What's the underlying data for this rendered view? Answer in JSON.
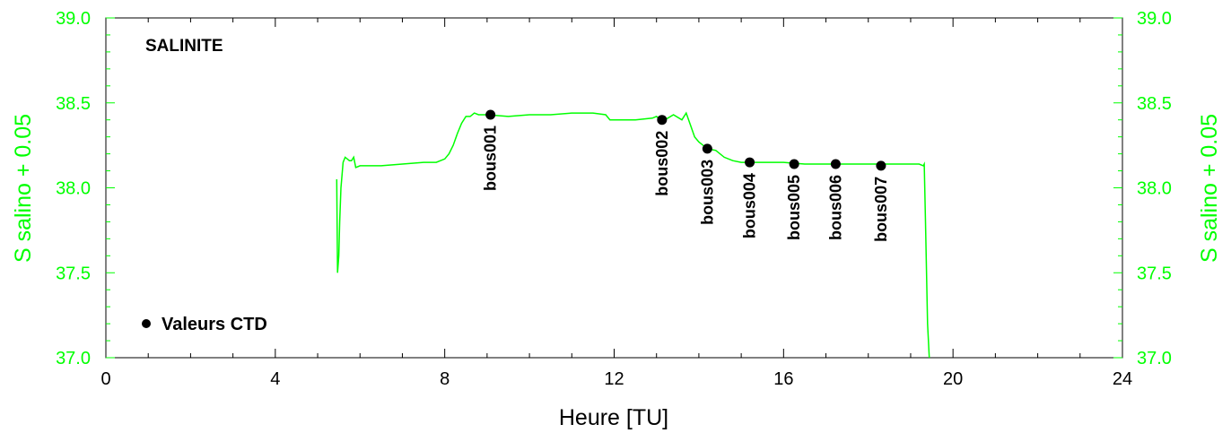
{
  "chart_data": {
    "type": "line",
    "title": "SALINITE",
    "xlabel": "Heure [TU]",
    "ylabel": "S salino + 0.05",
    "ylabel_right": "S salino + 0.05",
    "xlim": [
      0,
      24
    ],
    "ylim": [
      37.0,
      39.0
    ],
    "x_ticks": [
      "0",
      "4",
      "8",
      "12",
      "16",
      "20",
      "24"
    ],
    "y_ticks": [
      "37.0",
      "37.5",
      "38.0",
      "38.5",
      "39.0"
    ],
    "grid": false,
    "legend": {
      "label": "Valeurs CTD",
      "placement": "bottom-left"
    },
    "colors": {
      "series": "#00ff00",
      "axis_labels": "#00ff00",
      "ctd_points": "#000000"
    },
    "series": [
      {
        "x": [
          5.45,
          5.47,
          5.5,
          5.52,
          5.55,
          5.6,
          5.65,
          5.7,
          5.75,
          5.8,
          5.85,
          5.9,
          6.0,
          6.2,
          6.5,
          7.0,
          7.5,
          7.8,
          8.0,
          8.1,
          8.2,
          8.3,
          8.4,
          8.5,
          8.6,
          8.7,
          8.8,
          9.0,
          9.5,
          10.0,
          10.5,
          11.0,
          11.5,
          11.8,
          11.9,
          12.0,
          12.5,
          12.9,
          13.0,
          13.1,
          13.2,
          13.4,
          13.6,
          13.7,
          13.8,
          13.9,
          14.0,
          14.1,
          14.2,
          14.4,
          14.6,
          14.8,
          15.0,
          15.5,
          16.0,
          16.5,
          17.0,
          17.5,
          18.0,
          18.5,
          19.0,
          19.2,
          19.3,
          19.32,
          19.35,
          19.4,
          19.45
        ],
        "y": [
          38.05,
          37.5,
          37.6,
          37.8,
          38.0,
          38.15,
          38.18,
          38.17,
          38.16,
          38.16,
          38.18,
          38.12,
          38.13,
          38.13,
          38.13,
          38.14,
          38.15,
          38.15,
          38.17,
          38.2,
          38.25,
          38.32,
          38.38,
          38.42,
          38.42,
          38.44,
          38.43,
          38.43,
          38.42,
          38.43,
          38.43,
          38.44,
          38.44,
          38.43,
          38.4,
          38.4,
          38.4,
          38.41,
          38.42,
          38.4,
          38.4,
          38.43,
          38.4,
          38.44,
          38.37,
          38.3,
          38.27,
          38.25,
          38.23,
          38.22,
          38.18,
          38.16,
          38.15,
          38.15,
          38.15,
          38.14,
          38.14,
          38.14,
          38.14,
          38.14,
          38.14,
          38.14,
          38.13,
          38.14,
          37.8,
          37.2,
          36.95
        ]
      }
    ],
    "ctd_points": [
      {
        "label": "bous001",
        "x": 9.08,
        "y": 38.43
      },
      {
        "label": "bous002",
        "x": 13.13,
        "y": 38.4
      },
      {
        "label": "bous003",
        "x": 14.2,
        "y": 38.23
      },
      {
        "label": "bous004",
        "x": 15.2,
        "y": 38.15
      },
      {
        "label": "bous005",
        "x": 16.25,
        "y": 38.14
      },
      {
        "label": "bous006",
        "x": 17.23,
        "y": 38.14
      },
      {
        "label": "bous007",
        "x": 18.3,
        "y": 38.13
      }
    ]
  }
}
